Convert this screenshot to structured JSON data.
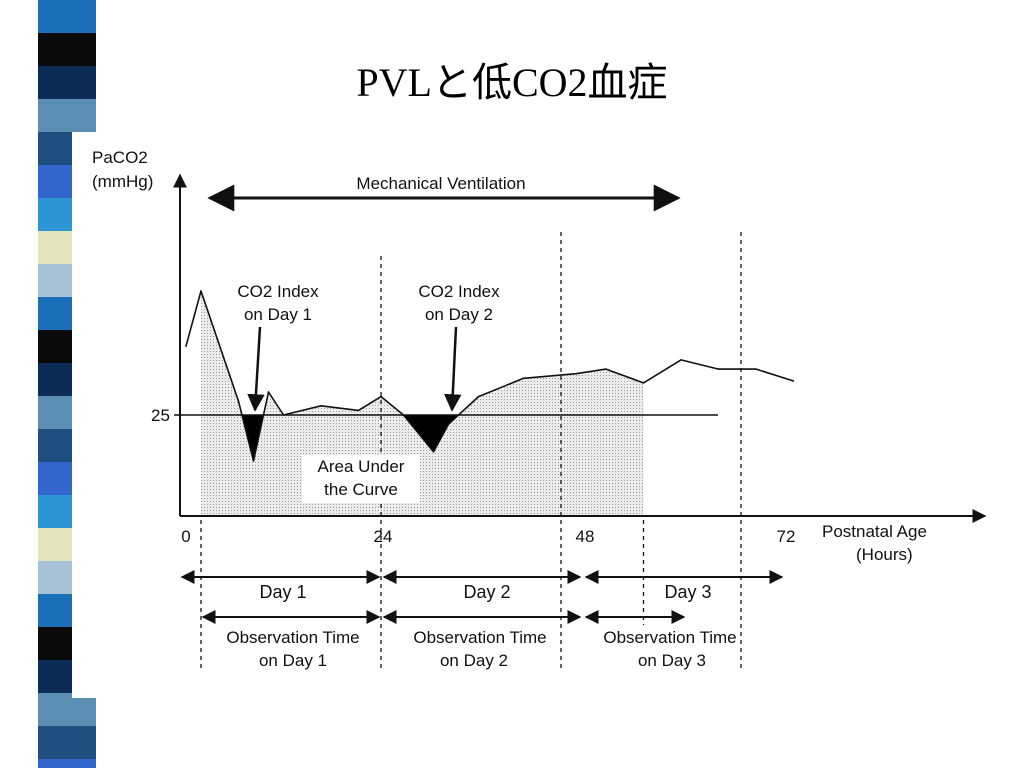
{
  "slide": {
    "title": "PVLと低CO2血症"
  },
  "chart_data": {
    "type": "line",
    "ylabel_line1": "PaCO2",
    "ylabel_line2": "(mmHg)",
    "xlabel_line1": "Postnatal  Age",
    "xlabel_line2": "(Hours)",
    "x_ticks": [
      "0",
      "24",
      "48",
      "72"
    ],
    "y_ticks": [
      "25"
    ],
    "threshold": 25,
    "x_unit": "hours",
    "series": [
      {
        "values": [
          [
            -2,
            32.5
          ],
          [
            0,
            38.5
          ],
          [
            5,
            26.5
          ],
          [
            7,
            20
          ],
          [
            9,
            27.5
          ],
          [
            11,
            25
          ],
          [
            16,
            26
          ],
          [
            21,
            25.5
          ],
          [
            24,
            27
          ],
          [
            27,
            25
          ],
          [
            31,
            21
          ],
          [
            33,
            24
          ],
          [
            37,
            27
          ],
          [
            43,
            29
          ],
          [
            50,
            29.5
          ],
          [
            54,
            30
          ],
          [
            59,
            28.5
          ],
          [
            64,
            31
          ],
          [
            69,
            30
          ],
          [
            74,
            30
          ],
          [
            79,
            28.7
          ]
        ]
      }
    ],
    "shaded_area_range": [
      0,
      59
    ],
    "shading": "dotted-grey",
    "below_threshold_fill": "black"
  },
  "annotations": {
    "ventilation": "Mechanical Ventilation",
    "index_day1_line1": "CO2 Index",
    "index_day1_line2": "on Day 1",
    "index_day2_line1": "CO2 Index",
    "index_day2_line2": "on Day 2",
    "auc_line1": "Area Under",
    "auc_line2": "the Curve"
  },
  "timeline": {
    "days": [
      "Day 1",
      "Day 2",
      "Day 3"
    ],
    "observation_line1": [
      "Observation Time",
      "Observation Time",
      "Observation Time"
    ],
    "observation_line2": [
      "on Day 1",
      "on Day 2",
      "on Day  3"
    ]
  },
  "colors": {
    "stripe": [
      "#1a6fb8",
      "#0d2c55",
      "#e5e4bf",
      "#5a8fb3",
      "#3366cc",
      "#0a0a0a",
      "#2d95d4",
      "#a7c1d6",
      "#1f4f80"
    ],
    "shade": "#e8e8e8",
    "ink": "#111111"
  }
}
